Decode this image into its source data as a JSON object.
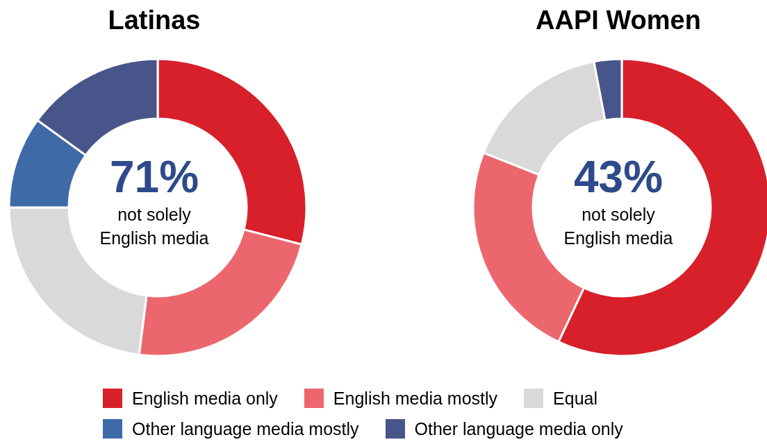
{
  "chart_data": {
    "type": "donut",
    "categories": [
      "English media only",
      "English media mostly",
      "Equal",
      "Other language media mostly",
      "Other language media only"
    ],
    "colors": [
      "#d7202a",
      "#ec676d",
      "#d9d9d9",
      "#3e6aa8",
      "#48558a"
    ],
    "series": [
      {
        "name": "Latinas",
        "values": [
          29,
          23,
          23,
          10,
          15
        ]
      },
      {
        "name": "AAPI Women",
        "values": [
          57,
          24,
          16,
          0,
          3
        ]
      }
    ],
    "annotations": [
      "71%",
      "not solely English media",
      "43%",
      "not solely English media"
    ],
    "legend": "bottom"
  }
}
